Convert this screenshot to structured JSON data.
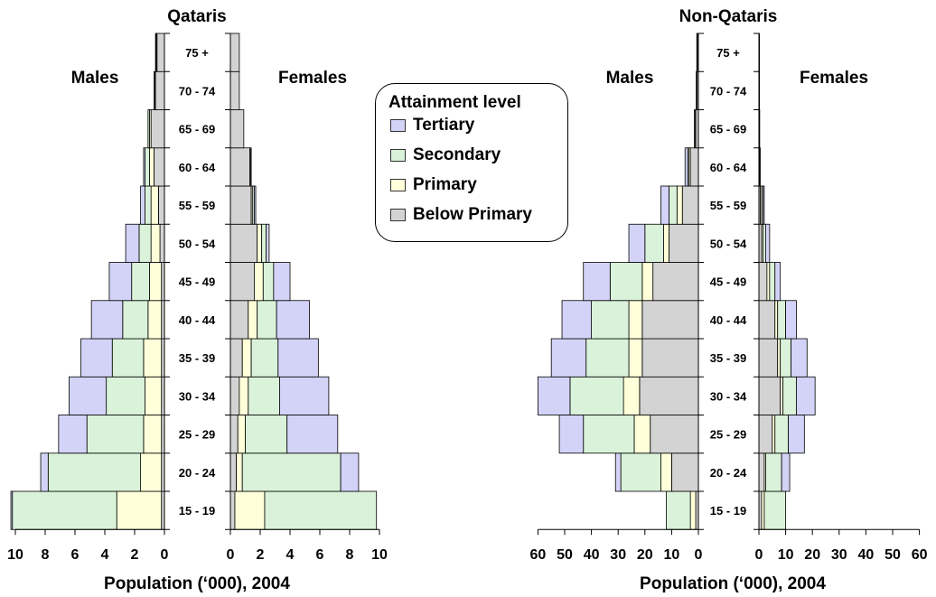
{
  "chart_data": {
    "type": "bar",
    "subtype": "population-pyramid-stacked",
    "age_groups": [
      "15 - 19",
      "20 - 24",
      "25 - 29",
      "30 - 34",
      "35 - 39",
      "40 - 44",
      "45 - 49",
      "50 - 54",
      "55 - 59",
      "60 - 64",
      "65 - 69",
      "70 - 74",
      "75 +"
    ],
    "series_order": [
      "Below Primary",
      "Primary",
      "Secondary",
      "Tertiary"
    ],
    "colors": {
      "Below Primary": "#d3d3d3",
      "Primary": "#ffffd9",
      "Secondary": "#d9f2d9",
      "Tertiary": "#d3d3f8"
    },
    "legend": {
      "title": "Attainment level",
      "items": [
        "Tertiary",
        "Secondary",
        "Primary",
        "Below Primary"
      ],
      "position": "top-center"
    },
    "panels": [
      {
        "title": "Qataris",
        "xlabel": "Population (‘000), 2004",
        "male_label": "Males",
        "female_label": "Females",
        "xlim": [
          0,
          10
        ],
        "male_ticks": [
          "10",
          "8",
          "6",
          "4",
          "2",
          "0"
        ],
        "female_ticks": [
          "0",
          "2",
          "4",
          "6",
          "8",
          "10"
        ],
        "males": {
          "Below Primary": [
            0.2,
            0.2,
            0.2,
            0.2,
            0.2,
            0.2,
            0.2,
            0.3,
            0.4,
            0.7,
            0.9,
            0.6,
            0.5
          ],
          "Primary": [
            3.0,
            1.4,
            1.2,
            1.1,
            1.2,
            0.9,
            0.8,
            0.6,
            0.5,
            0.3,
            0.1,
            0.05,
            0.05
          ],
          "Secondary": [
            7.0,
            6.2,
            3.8,
            2.6,
            2.1,
            1.7,
            1.2,
            0.8,
            0.4,
            0.3,
            0.1,
            0.05,
            0.05
          ],
          "Tertiary": [
            0.1,
            0.5,
            1.9,
            2.5,
            2.1,
            2.1,
            1.5,
            0.9,
            0.3,
            0.1,
            0.0,
            0.0,
            0.0
          ]
        },
        "females": {
          "Below Primary": [
            0.3,
            0.4,
            0.5,
            0.6,
            0.8,
            1.2,
            1.6,
            1.8,
            1.4,
            1.3,
            0.9,
            0.6,
            0.6
          ],
          "Primary": [
            2.0,
            0.4,
            0.5,
            0.6,
            0.6,
            0.6,
            0.6,
            0.3,
            0.1,
            0.05,
            0.0,
            0.0,
            0.0
          ],
          "Secondary": [
            7.5,
            6.6,
            2.8,
            2.1,
            1.8,
            1.3,
            0.7,
            0.3,
            0.1,
            0.05,
            0.0,
            0.0,
            0.0
          ],
          "Tertiary": [
            0.0,
            1.2,
            3.4,
            3.3,
            2.7,
            2.2,
            1.1,
            0.2,
            0.1,
            0.0,
            0.0,
            0.0,
            0.0
          ]
        }
      },
      {
        "title": "Non-Qataris",
        "xlabel": "Population (‘000), 2004",
        "male_label": "Males",
        "female_label": "Females",
        "xlim": [
          0,
          60
        ],
        "male_ticks": [
          "60",
          "50",
          "40",
          "30",
          "20",
          "10",
          "0"
        ],
        "female_ticks": [
          "0",
          "10",
          "20",
          "30",
          "40",
          "50",
          "60"
        ],
        "males": {
          "Below Primary": [
            1,
            10,
            18,
            22,
            21,
            21,
            17,
            11,
            6,
            3,
            1,
            0.5,
            0.4
          ],
          "Primary": [
            2,
            4,
            6,
            6,
            5,
            5,
            4,
            2,
            2,
            0.5,
            0.3,
            0.2,
            0.2
          ],
          "Secondary": [
            9,
            15,
            19,
            20,
            16,
            14,
            12,
            7,
            3,
            0.5,
            0.2,
            0.1,
            0
          ],
          "Tertiary": [
            0,
            2,
            9,
            12,
            13,
            11,
            10,
            6,
            3,
            1,
            0,
            0,
            0
          ]
        },
        "females": {
          "Below Primary": [
            1,
            2,
            5,
            8,
            7,
            6,
            3,
            1,
            0.5,
            0.3,
            0.3,
            0.2,
            0.2
          ],
          "Primary": [
            1,
            0.5,
            1,
            1,
            1,
            1,
            1,
            0.5,
            0.5,
            0.2,
            0,
            0,
            0
          ],
          "Secondary": [
            8,
            6,
            5,
            5,
            4,
            3,
            2,
            1,
            0.5,
            0,
            0,
            0,
            0
          ],
          "Tertiary": [
            0,
            3,
            6,
            7,
            6,
            4,
            2,
            1.5,
            0.5,
            0,
            0,
            0,
            0
          ]
        }
      }
    ]
  }
}
